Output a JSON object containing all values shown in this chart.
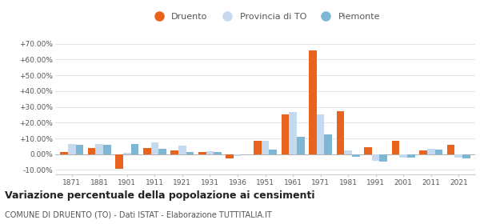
{
  "years": [
    1871,
    1881,
    1901,
    1911,
    1921,
    1931,
    1936,
    1951,
    1961,
    1971,
    1981,
    1991,
    2001,
    2011,
    2021
  ],
  "druento": [
    1.5,
    4.0,
    -9.5,
    4.0,
    2.5,
    1.5,
    -2.5,
    8.5,
    25.0,
    66.0,
    27.0,
    4.5,
    8.5,
    2.5,
    6.0
  ],
  "provincia_to": [
    6.5,
    6.5,
    1.0,
    7.5,
    5.5,
    2.0,
    -1.0,
    8.5,
    26.5,
    25.0,
    2.5,
    -4.0,
    -2.0,
    3.5,
    -2.0
  ],
  "piemonte": [
    6.0,
    6.0,
    6.5,
    3.5,
    1.5,
    1.5,
    0.0,
    3.0,
    11.0,
    12.5,
    -1.5,
    -4.5,
    -2.0,
    3.0,
    -2.5
  ],
  "color_druento": "#e8641e",
  "color_provincia": "#c5d9ef",
  "color_piemonte": "#7eb6d4",
  "title": "Variazione percentuale della popolazione ai censimenti",
  "subtitle": "COMUNE DI DRUENTO (TO) - Dati ISTAT - Elaborazione TUTTITALIA.IT",
  "ylim": [
    -13,
    75
  ],
  "yticks": [
    -10,
    0,
    10,
    20,
    30,
    40,
    50,
    60,
    70
  ],
  "background_color": "#ffffff",
  "grid_color": "#e0e0e0",
  "text_color": "#555555",
  "title_color": "#222222",
  "axis_color": "#cccccc"
}
